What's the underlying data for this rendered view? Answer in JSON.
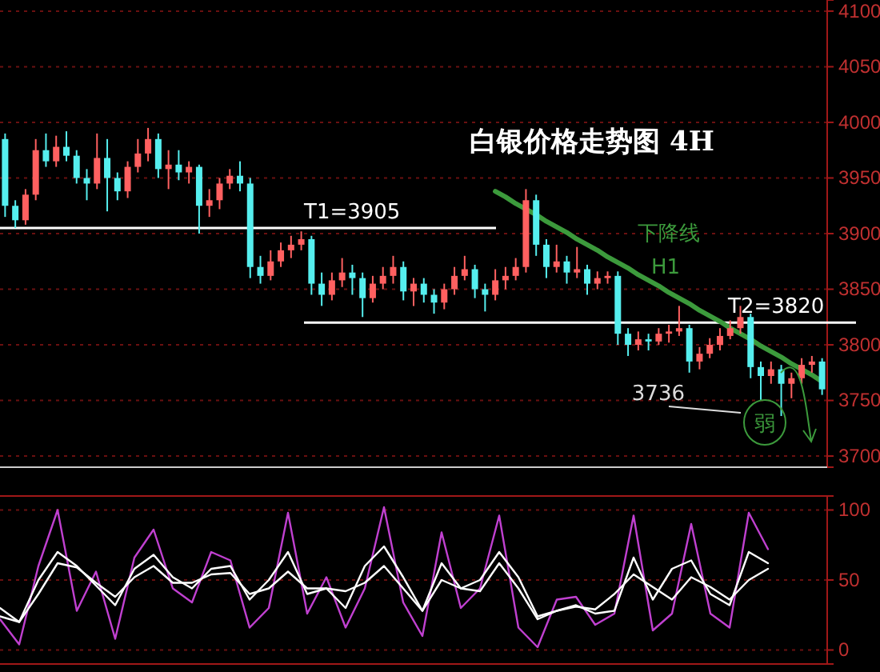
{
  "chart_data": [
    {
      "type": "candlestick",
      "title": "白银价格走势图 4H",
      "categories": [
        null,
        null,
        null,
        null,
        null,
        null,
        null,
        null,
        null,
        null,
        null,
        null,
        null,
        null,
        null,
        null,
        null,
        null,
        null,
        null,
        null,
        null,
        null,
        null,
        null,
        null,
        null,
        null,
        null,
        null,
        null,
        null,
        null,
        null,
        null,
        null,
        null,
        null,
        null,
        null,
        null,
        null,
        null,
        null,
        null,
        null,
        null,
        null,
        null,
        null,
        null,
        null,
        null,
        null,
        null,
        null,
        null,
        null,
        null,
        null,
        null,
        null,
        null,
        null,
        null,
        null,
        null,
        null,
        null,
        null,
        null,
        null,
        null,
        null,
        null,
        null,
        null,
        null,
        null,
        null,
        null
      ],
      "ohlc": [
        [
          3985,
          3990,
          3915,
          3925
        ],
        [
          3925,
          3930,
          3905,
          3912
        ],
        [
          3912,
          3940,
          3908,
          3935
        ],
        [
          3935,
          3985,
          3930,
          3975
        ],
        [
          3975,
          3990,
          3960,
          3965
        ],
        [
          3965,
          3988,
          3960,
          3978
        ],
        [
          3978,
          3992,
          3965,
          3970
        ],
        [
          3970,
          3975,
          3945,
          3950
        ],
        [
          3950,
          3958,
          3930,
          3945
        ],
        [
          3945,
          3990,
          3940,
          3968
        ],
        [
          3968,
          3985,
          3920,
          3950
        ],
        [
          3950,
          3955,
          3930,
          3938
        ],
        [
          3938,
          3965,
          3932,
          3960
        ],
        [
          3960,
          3985,
          3955,
          3972
        ],
        [
          3972,
          3995,
          3965,
          3985
        ],
        [
          3985,
          3990,
          3950,
          3958
        ],
        [
          3958,
          3975,
          3940,
          3962
        ],
        [
          3962,
          3975,
          3948,
          3955
        ],
        [
          3955,
          3965,
          3945,
          3960
        ],
        [
          3960,
          3962,
          3900,
          3925
        ],
        [
          3925,
          3940,
          3915,
          3930
        ],
        [
          3930,
          3950,
          3922,
          3945
        ],
        [
          3945,
          3958,
          3940,
          3952
        ],
        [
          3952,
          3965,
          3938,
          3945
        ],
        [
          3945,
          3950,
          3860,
          3870
        ],
        [
          3870,
          3880,
          3855,
          3862
        ],
        [
          3862,
          3885,
          3858,
          3875
        ],
        [
          3875,
          3892,
          3870,
          3885
        ],
        [
          3885,
          3898,
          3878,
          3890
        ],
        [
          3890,
          3902,
          3885,
          3895
        ],
        [
          3895,
          3898,
          3845,
          3855
        ],
        [
          3855,
          3865,
          3835,
          3845
        ],
        [
          3845,
          3865,
          3840,
          3858
        ],
        [
          3858,
          3878,
          3852,
          3865
        ],
        [
          3865,
          3872,
          3845,
          3860
        ],
        [
          3860,
          3865,
          3825,
          3842
        ],
        [
          3842,
          3862,
          3838,
          3855
        ],
        [
          3855,
          3870,
          3850,
          3862
        ],
        [
          3862,
          3880,
          3855,
          3870
        ],
        [
          3870,
          3875,
          3840,
          3848
        ],
        [
          3848,
          3860,
          3835,
          3855
        ],
        [
          3855,
          3860,
          3838,
          3845
        ],
        [
          3845,
          3850,
          3828,
          3838
        ],
        [
          3838,
          3855,
          3832,
          3850
        ],
        [
          3850,
          3870,
          3845,
          3862
        ],
        [
          3862,
          3880,
          3858,
          3868
        ],
        [
          3868,
          3872,
          3842,
          3850
        ],
        [
          3850,
          3855,
          3830,
          3845
        ],
        [
          3845,
          3868,
          3840,
          3858
        ],
        [
          3858,
          3870,
          3850,
          3862
        ],
        [
          3862,
          3878,
          3858,
          3870
        ],
        [
          3870,
          3940,
          3865,
          3930
        ],
        [
          3930,
          3935,
          3880,
          3890
        ],
        [
          3890,
          3895,
          3860,
          3870
        ],
        [
          3870,
          3890,
          3865,
          3875
        ],
        [
          3875,
          3880,
          3855,
          3865
        ],
        [
          3865,
          3888,
          3860,
          3868
        ],
        [
          3868,
          3872,
          3845,
          3855
        ],
        [
          3855,
          3866,
          3850,
          3860
        ],
        [
          3860,
          3866,
          3855,
          3862
        ],
        [
          3862,
          3866,
          3800,
          3810
        ],
        [
          3810,
          3815,
          3790,
          3800
        ],
        [
          3800,
          3812,
          3795,
          3805
        ],
        [
          3805,
          3810,
          3795,
          3803
        ],
        [
          3803,
          3815,
          3800,
          3810
        ],
        [
          3810,
          3818,
          3802,
          3812
        ],
        [
          3812,
          3835,
          3808,
          3815
        ],
        [
          3815,
          3818,
          3775,
          3785
        ],
        [
          3785,
          3798,
          3778,
          3792
        ],
        [
          3792,
          3806,
          3788,
          3800
        ],
        [
          3800,
          3815,
          3795,
          3808
        ],
        [
          3808,
          3822,
          3805,
          3815
        ],
        [
          3815,
          3835,
          3810,
          3825
        ],
        [
          3825,
          3828,
          3770,
          3780
        ],
        [
          3780,
          3785,
          3750,
          3772
        ],
        [
          3772,
          3785,
          3765,
          3778
        ],
        [
          3778,
          3782,
          3736,
          3765
        ],
        [
          3765,
          3775,
          3752,
          3770
        ],
        [
          3770,
          3788,
          3765,
          3782
        ],
        [
          3782,
          3790,
          3775,
          3785
        ],
        [
          3785,
          3788,
          3755,
          3760
        ]
      ],
      "series": [
        {
          "type": "line",
          "values": [
            null,
            null,
            null,
            null,
            null,
            null,
            null,
            null,
            null,
            null,
            null,
            null,
            null,
            null,
            null,
            null,
            null,
            null,
            null,
            null,
            null,
            null,
            null,
            null,
            null,
            null,
            null,
            null,
            null,
            null,
            null,
            null,
            null,
            null,
            null,
            null,
            null,
            null,
            null,
            null,
            null,
            null,
            null,
            null,
            null,
            null,
            null,
            null,
            3938,
            3933,
            3927,
            3922,
            3917,
            3911,
            3906,
            3901,
            3895,
            3890,
            3885,
            3879,
            3874,
            3869,
            3863,
            3858,
            3853,
            3847,
            3842,
            3837,
            3831,
            3826,
            3821,
            3815,
            3810,
            3805,
            3799,
            3794,
            3789,
            3783,
            3778,
            3773,
            3767
          ],
          "color": "#3c9a3c"
        }
      ],
      "ylim": [
        3690,
        4110
      ],
      "yticks": [
        3700,
        3750,
        3800,
        3850,
        3900,
        3950,
        4000,
        4050,
        4100
      ],
      "tick_labels": "y",
      "grid": "y",
      "ref_lines": [
        {
          "axis": "y",
          "value": 3905,
          "label": "T1=3905"
        },
        {
          "axis": "y",
          "value": 3820,
          "label": "T2=3820"
        }
      ],
      "annotations": [
        "下降线",
        "H1",
        "3736",
        "弱"
      ]
    },
    {
      "type": "line",
      "categories": [
        null,
        null,
        null,
        null,
        null,
        null,
        null,
        null,
        null,
        null,
        null,
        null,
        null,
        null,
        null,
        null,
        null,
        null,
        null,
        null,
        null,
        null,
        null,
        null,
        null,
        null,
        null,
        null,
        null,
        null,
        null,
        null,
        null,
        null,
        null,
        null,
        null,
        null,
        null,
        null,
        null
      ],
      "ylim": [
        -10,
        110
      ],
      "yticks": [
        0,
        50,
        100
      ],
      "tick_labels": "y",
      "grid": "y",
      "series": [
        {
          "color": "#c040d0",
          "values": [
            22,
            4,
            60,
            100,
            28,
            56,
            8,
            66,
            86,
            44,
            34,
            70,
            64,
            16,
            30,
            98,
            26,
            52,
            16,
            44,
            102,
            34,
            10,
            84,
            30,
            44,
            96,
            16,
            2,
            36,
            38,
            18,
            26,
            96,
            14,
            26,
            90,
            26,
            16,
            98,
            72
          ]
        },
        {
          "color": "#ffffff",
          "values": [
            30,
            20,
            50,
            70,
            60,
            46,
            32,
            58,
            68,
            52,
            44,
            58,
            60,
            36,
            50,
            70,
            40,
            44,
            30,
            60,
            74,
            52,
            28,
            62,
            44,
            50,
            70,
            52,
            24,
            28,
            32,
            26,
            28,
            66,
            36,
            58,
            64,
            40,
            32,
            70,
            62
          ]
        },
        {
          "color": "#ffffff",
          "values": [
            24,
            20,
            40,
            62,
            59,
            48,
            38,
            52,
            60,
            48,
            48,
            54,
            55,
            40,
            44,
            56,
            44,
            44,
            42,
            48,
            60,
            44,
            28,
            50,
            44,
            42,
            62,
            44,
            22,
            28,
            31,
            29,
            40,
            54,
            45,
            36,
            52,
            45,
            36,
            50,
            58
          ]
        }
      ]
    }
  ]
}
